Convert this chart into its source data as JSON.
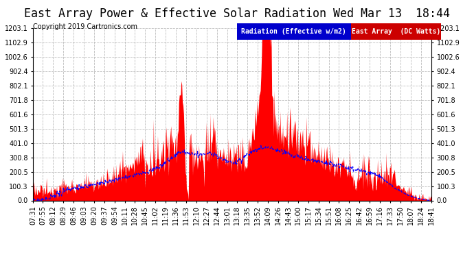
{
  "title": "East Array Power & Effective Solar Radiation Wed Mar 13  18:44",
  "copyright": "Copyright 2019 Cartronics.com",
  "legend_radiation": "Radiation (Effective w/m2)",
  "legend_array": "East Array  (DC Watts)",
  "legend_radiation_bg": "#0000cc",
  "legend_array_bg": "#cc0000",
  "background_color": "#ffffff",
  "plot_bg": "#ffffff",
  "grid_color": "#bbbbbb",
  "yticks": [
    0.0,
    100.3,
    200.5,
    300.8,
    401.0,
    501.3,
    601.6,
    701.8,
    802.1,
    902.4,
    1002.6,
    1102.9,
    1203.1
  ],
  "xlabels": [
    "07:31",
    "07:55",
    "08:12",
    "08:29",
    "08:46",
    "09:03",
    "09:20",
    "09:37",
    "09:54",
    "10:11",
    "10:28",
    "10:45",
    "11:02",
    "11:19",
    "11:36",
    "11:53",
    "12:10",
    "12:27",
    "12:44",
    "13:01",
    "13:18",
    "13:35",
    "13:52",
    "14:09",
    "14:26",
    "14:43",
    "15:00",
    "15:17",
    "15:34",
    "15:51",
    "16:08",
    "16:25",
    "16:42",
    "16:59",
    "17:16",
    "17:33",
    "17:50",
    "18:07",
    "18:24",
    "18:41"
  ],
  "ymax": 1203.1,
  "ymin": 0.0,
  "title_fontsize": 12,
  "axis_fontsize": 7,
  "copyright_fontsize": 7,
  "legend_fontsize": 7
}
